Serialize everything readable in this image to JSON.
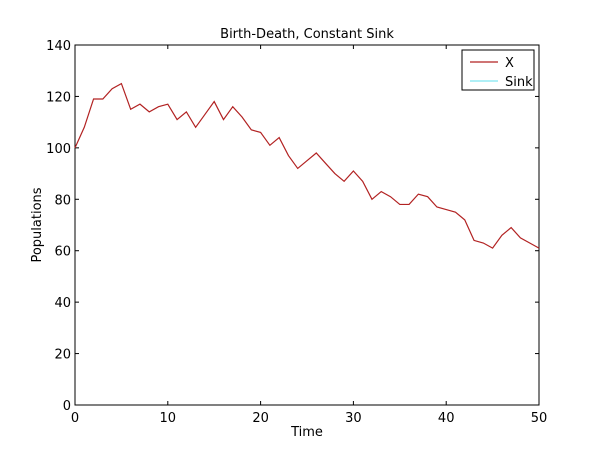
{
  "chart_data": {
    "type": "line",
    "title": "Birth-Death, Constant Sink",
    "xlabel": "Time",
    "ylabel": "Populations",
    "xlim": [
      0,
      50
    ],
    "ylim": [
      0,
      140
    ],
    "xticks": [
      0,
      10,
      20,
      30,
      40,
      50
    ],
    "yticks": [
      0,
      20,
      40,
      60,
      80,
      100,
      120,
      140
    ],
    "grid": false,
    "legend_position": "top-right",
    "series": [
      {
        "name": "X",
        "color": "#b22222",
        "x": [
          0,
          1,
          2,
          3,
          4,
          5,
          6,
          7,
          8,
          9,
          10,
          11,
          12,
          13,
          14,
          15,
          16,
          17,
          18,
          19,
          20,
          21,
          22,
          23,
          24,
          25,
          26,
          27,
          28,
          29,
          30,
          31,
          32,
          33,
          34,
          35,
          36,
          37,
          38,
          39,
          40,
          41,
          42,
          43,
          44,
          45,
          46,
          47,
          48,
          49,
          50
        ],
        "y": [
          100,
          108,
          119,
          119,
          123,
          125,
          115,
          117,
          114,
          116,
          117,
          111,
          114,
          108,
          113,
          118,
          111,
          116,
          112,
          107,
          106,
          101,
          104,
          97,
          92,
          95,
          98,
          94,
          90,
          87,
          91,
          87,
          80,
          83,
          81,
          78,
          78,
          82,
          81,
          77,
          76,
          75,
          72,
          64,
          63,
          61,
          66,
          69,
          65,
          63,
          61
        ]
      },
      {
        "name": "Sink",
        "color": "#7fe5f0",
        "x": [],
        "y": []
      }
    ]
  }
}
